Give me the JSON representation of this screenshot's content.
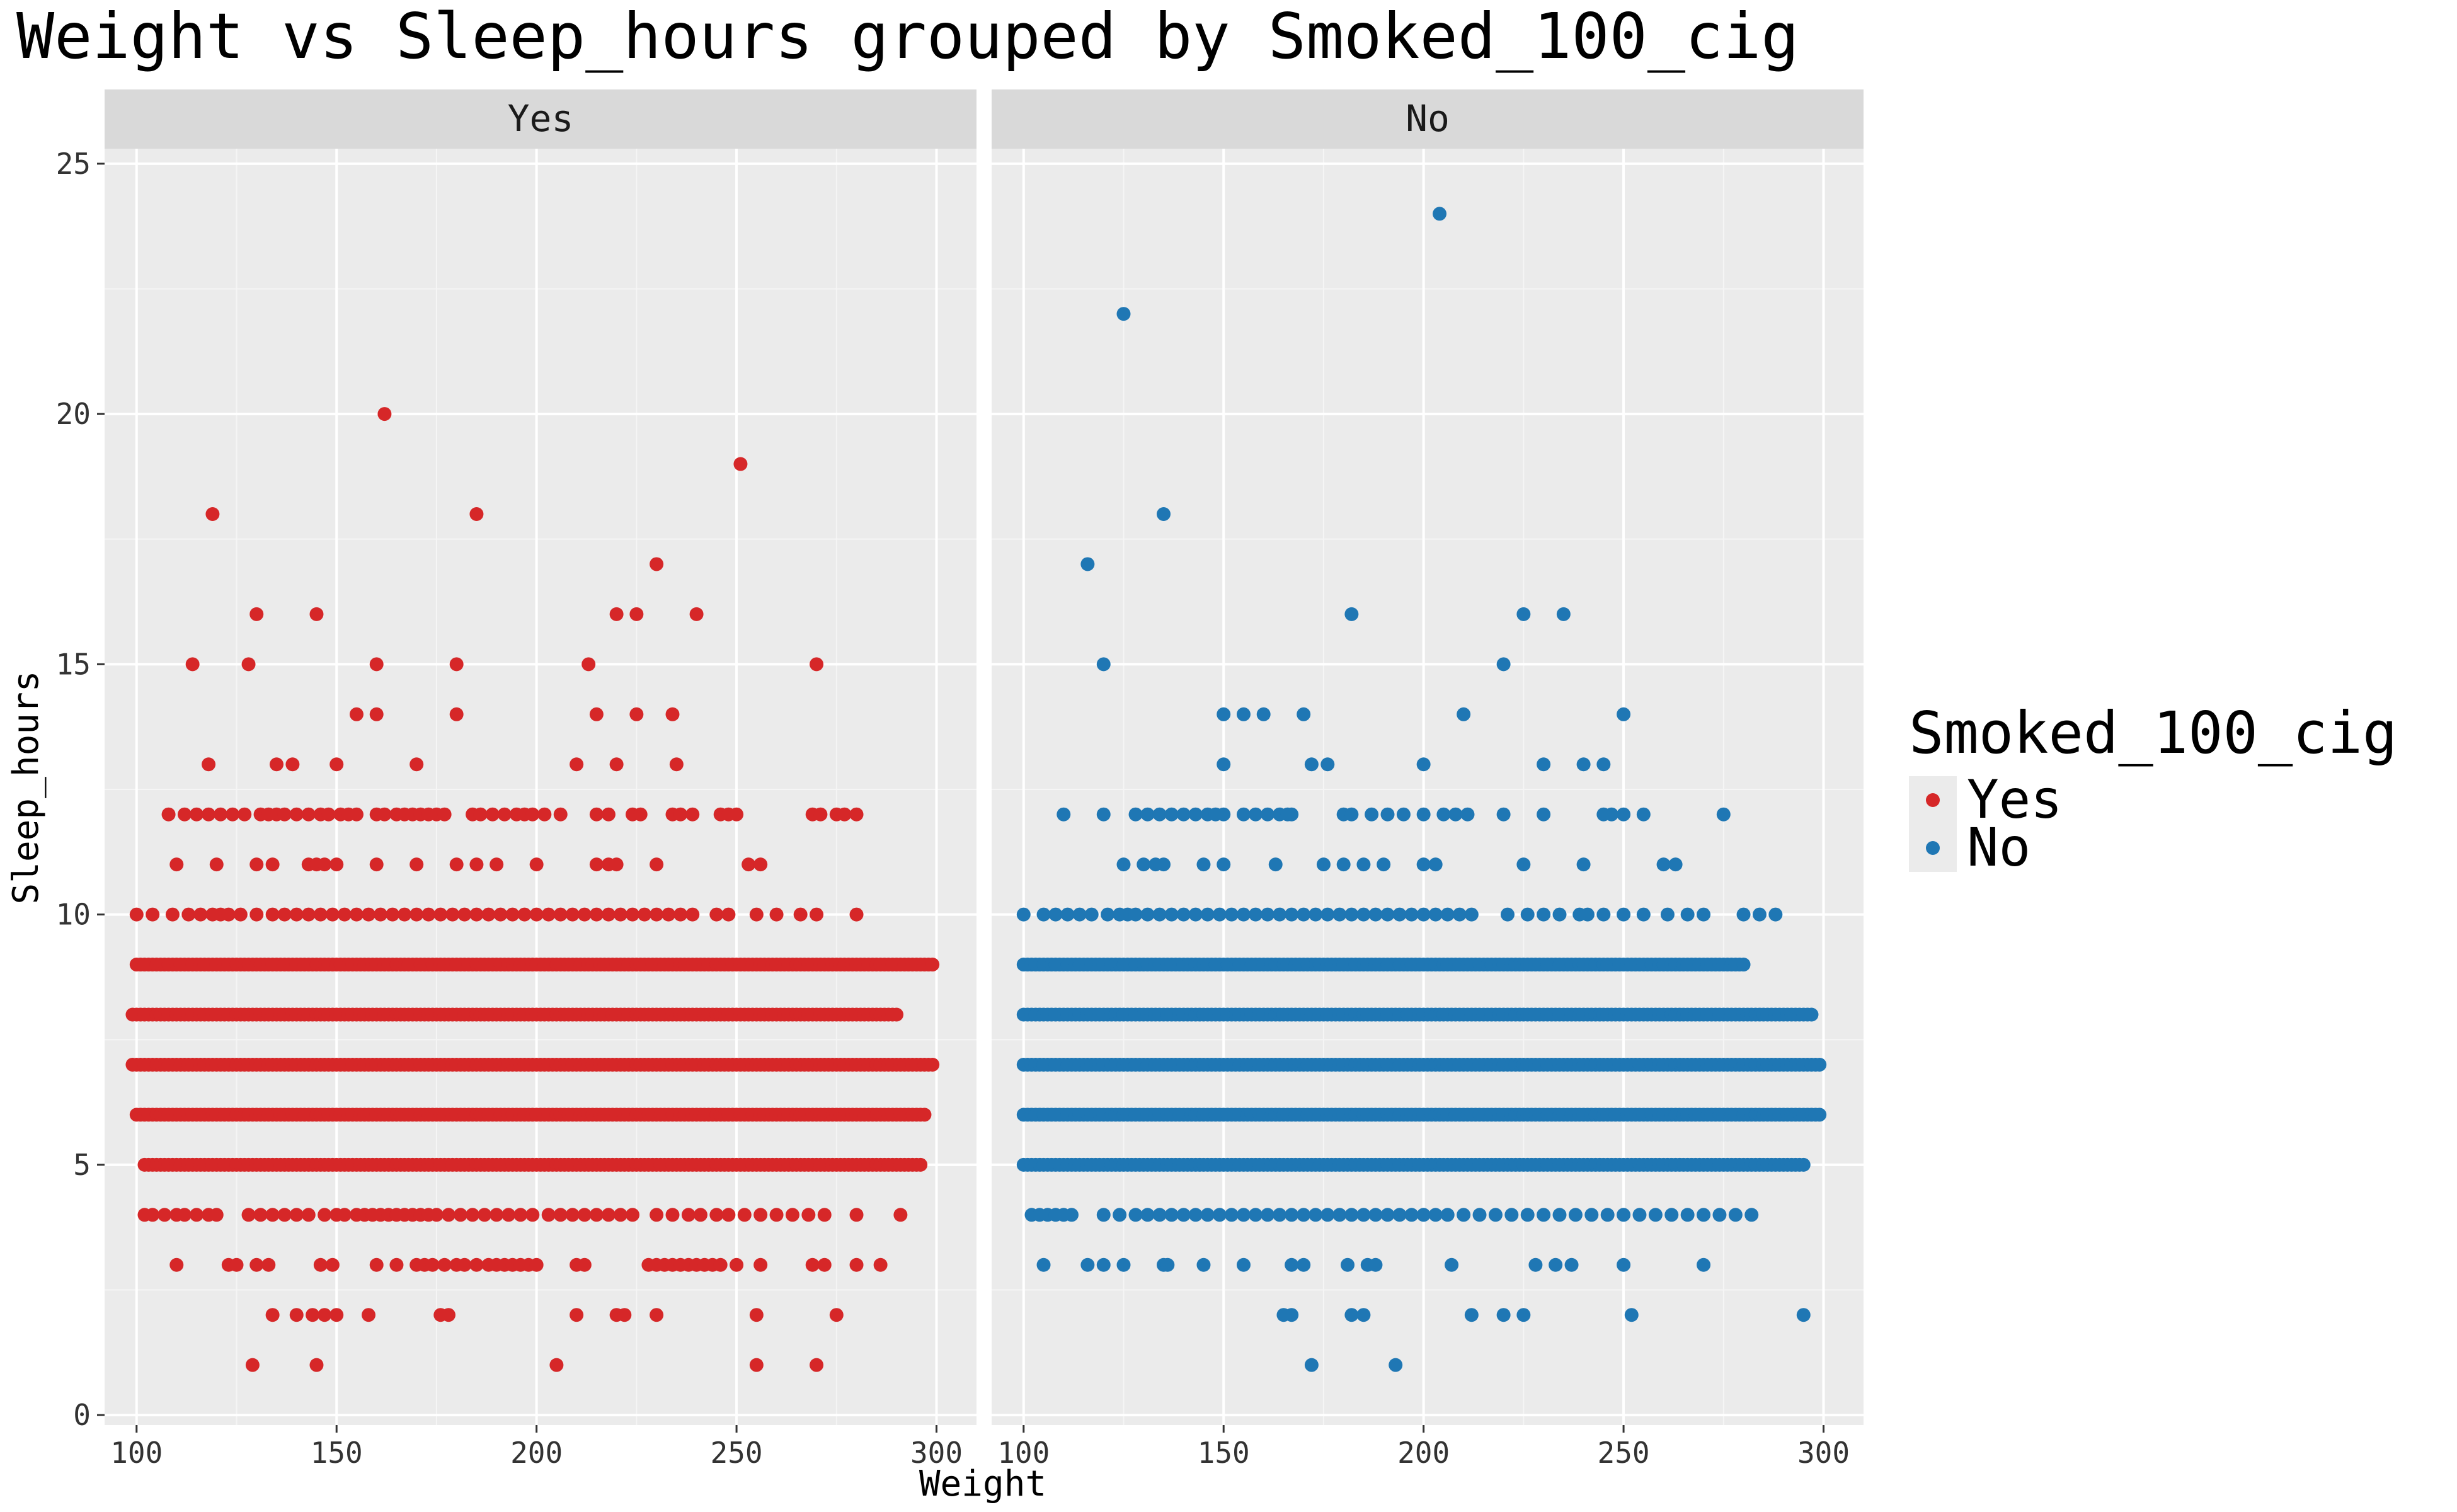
{
  "chart_data": {
    "type": "scatter",
    "title": "Weight vs Sleep_hours grouped by Smoked_100_cig",
    "xlabel": "Weight",
    "ylabel": "Sleep_hours",
    "xlim": [
      92,
      310
    ],
    "ylim": [
      -0.2,
      25.3
    ],
    "xticks": [
      100,
      150,
      200,
      250,
      300
    ],
    "yticks": [
      0,
      5,
      10,
      15,
      20,
      25
    ],
    "grid": true,
    "legend": {
      "title": "Smoked_100_cig",
      "position": "right",
      "entries": [
        {
          "label": "Yes",
          "color": "#d62728"
        },
        {
          "label": "No",
          "color": "#1f77b4"
        }
      ]
    },
    "panels": [
      {
        "label": "Yes",
        "color": "#d62728",
        "row_ranges": [
          {
            "y": 6,
            "from": 100,
            "to": 297
          },
          {
            "y": 7,
            "from": 99,
            "to": 299
          },
          {
            "y": 8,
            "from": 99,
            "to": 290
          },
          {
            "y": 9,
            "from": 100,
            "to": 299
          },
          {
            "y": 5,
            "from": 102,
            "to": 296
          }
        ],
        "rows": [
          {
            "y": 1,
            "x": [
              129,
              145,
              205,
              255,
              270
            ]
          },
          {
            "y": 2,
            "x": [
              134,
              140,
              144,
              147,
              150,
              158,
              176,
              178,
              210,
              220,
              222,
              230,
              255,
              275
            ]
          },
          {
            "y": 3,
            "x": [
              110,
              123,
              125,
              130,
              133,
              146,
              149,
              160,
              165,
              170,
              172,
              174,
              177,
              180,
              182,
              185,
              188,
              190,
              192,
              194,
              196,
              198,
              200,
              210,
              212,
              228,
              230,
              232,
              234,
              236,
              238,
              240,
              242,
              244,
              246,
              250,
              256,
              269,
              272,
              280,
              286
            ]
          },
          {
            "y": 4,
            "x": [
              102,
              104,
              107,
              110,
              112,
              115,
              118,
              120,
              128,
              131,
              134,
              137,
              140,
              143,
              147,
              150,
              152,
              155,
              157,
              159,
              161,
              163,
              165,
              167,
              169,
              171,
              173,
              175,
              178,
              181,
              184,
              187,
              190,
              193,
              196,
              199,
              203,
              206,
              209,
              212,
              215,
              218,
              221,
              224,
              230,
              234,
              238,
              241,
              245,
              248,
              252,
              256,
              260,
              264,
              268,
              272,
              280,
              291
            ]
          },
          {
            "y": 10,
            "x": [
              100,
              104,
              109,
              113,
              116,
              119,
              121,
              123,
              126,
              130,
              134,
              137,
              140,
              143,
              146,
              149,
              152,
              155,
              158,
              161,
              164,
              167,
              170,
              173,
              176,
              179,
              182,
              185,
              188,
              191,
              194,
              197,
              200,
              203,
              206,
              209,
              212,
              215,
              218,
              221,
              224,
              227,
              230,
              233,
              236,
              239,
              245,
              248,
              255,
              260,
              266,
              270,
              280
            ]
          },
          {
            "y": 11,
            "x": [
              110,
              120,
              130,
              134,
              143,
              145,
              147,
              150,
              160,
              170,
              180,
              185,
              190,
              200,
              215,
              218,
              220,
              230,
              253,
              256
            ]
          },
          {
            "y": 12,
            "x": [
              108,
              112,
              115,
              118,
              121,
              124,
              127,
              131,
              133,
              135,
              137,
              140,
              143,
              146,
              148,
              151,
              153,
              155,
              160,
              162,
              165,
              167,
              169,
              171,
              173,
              175,
              177,
              184,
              186,
              189,
              192,
              195,
              197,
              199,
              202,
              206,
              215,
              218,
              224,
              226,
              234,
              236,
              239,
              246,
              248,
              250,
              269,
              271,
              275,
              277,
              280
            ]
          },
          {
            "y": 13,
            "x": [
              118,
              135,
              139,
              150,
              170,
              210,
              220,
              235
            ]
          },
          {
            "y": 14,
            "x": [
              155,
              160,
              180,
              215,
              225,
              234
            ]
          },
          {
            "y": 15,
            "x": [
              114,
              128,
              160,
              180,
              213,
              270
            ]
          },
          {
            "y": 16,
            "x": [
              130,
              145,
              220,
              225,
              240
            ]
          },
          {
            "y": 17,
            "x": [
              230
            ]
          },
          {
            "y": 18,
            "x": [
              119,
              185
            ]
          },
          {
            "y": 19,
            "x": [
              251
            ]
          },
          {
            "y": 20,
            "x": [
              162
            ]
          }
        ]
      },
      {
        "label": "No",
        "color": "#1f77b4",
        "row_ranges": [
          {
            "y": 6,
            "from": 100,
            "to": 299
          },
          {
            "y": 7,
            "from": 100,
            "to": 299
          },
          {
            "y": 8,
            "from": 100,
            "to": 297
          },
          {
            "y": 9,
            "from": 100,
            "to": 280
          },
          {
            "y": 5,
            "from": 100,
            "to": 295
          }
        ],
        "rows": [
          {
            "y": 1,
            "x": [
              172,
              193
            ]
          },
          {
            "y": 2,
            "x": [
              165,
              167,
              182,
              185,
              212,
              220,
              225,
              252,
              295
            ]
          },
          {
            "y": 3,
            "x": [
              105,
              116,
              120,
              125,
              135,
              136,
              145,
              155,
              167,
              170,
              181,
              186,
              188,
              207,
              228,
              233,
              237,
              250,
              270
            ]
          },
          {
            "y": 4,
            "x": [
              102,
              104,
              106,
              108,
              110,
              112,
              120,
              124,
              128,
              131,
              134,
              137,
              140,
              143,
              146,
              149,
              152,
              155,
              158,
              161,
              164,
              167,
              170,
              173,
              176,
              179,
              182,
              185,
              188,
              191,
              194,
              197,
              200,
              203,
              206,
              210,
              214,
              218,
              222,
              226,
              230,
              234,
              238,
              242,
              246,
              250,
              254,
              258,
              262,
              266,
              270,
              274,
              278,
              282
            ]
          },
          {
            "y": 10,
            "x": [
              100,
              105,
              108,
              111,
              114,
              117,
              121,
              124,
              126,
              128,
              131,
              134,
              137,
              140,
              143,
              146,
              149,
              152,
              155,
              158,
              161,
              164,
              167,
              170,
              173,
              176,
              179,
              182,
              185,
              188,
              191,
              194,
              197,
              200,
              203,
              206,
              209,
              212,
              221,
              226,
              230,
              234,
              239,
              241,
              245,
              250,
              255,
              261,
              266,
              270,
              280,
              284,
              288
            ]
          },
          {
            "y": 11,
            "x": [
              125,
              130,
              133,
              135,
              145,
              150,
              163,
              175,
              180,
              185,
              190,
              200,
              203,
              225,
              240,
              260,
              263
            ]
          },
          {
            "y": 12,
            "x": [
              110,
              120,
              128,
              131,
              134,
              137,
              140,
              143,
              146,
              148,
              150,
              155,
              158,
              161,
              164,
              166,
              167,
              180,
              182,
              187,
              191,
              195,
              200,
              205,
              208,
              211,
              220,
              230,
              245,
              247,
              250,
              255,
              275
            ]
          },
          {
            "y": 13,
            "x": [
              150,
              172,
              176,
              200,
              230,
              240,
              245
            ]
          },
          {
            "y": 14,
            "x": [
              150,
              155,
              160,
              170,
              210,
              250
            ]
          },
          {
            "y": 15,
            "x": [
              120,
              220
            ]
          },
          {
            "y": 16,
            "x": [
              182,
              225,
              235
            ]
          },
          {
            "y": 17,
            "x": [
              116
            ]
          },
          {
            "y": 18,
            "x": [
              135
            ]
          },
          {
            "y": 22,
            "x": [
              125
            ]
          },
          {
            "y": 24,
            "x": [
              204
            ]
          }
        ]
      }
    ]
  }
}
